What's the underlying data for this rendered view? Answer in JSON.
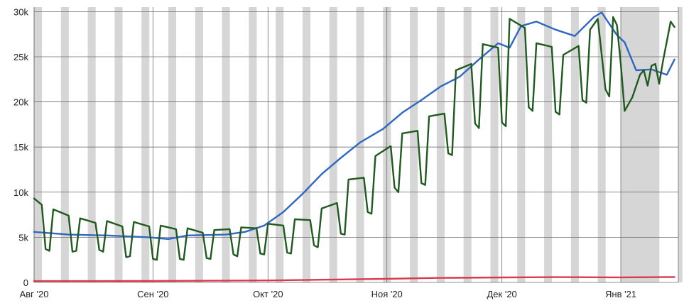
{
  "chart_data": {
    "type": "line",
    "title": "",
    "xlabel": "",
    "ylabel": "",
    "x_start": "2020-08-01",
    "x_end": "2021-01-16",
    "xlim": [
      "2020-08-01",
      "2021-01-16"
    ],
    "ylim": [
      0,
      30500
    ],
    "yticks": [
      0,
      5000,
      10000,
      15000,
      20000,
      25000,
      30000
    ],
    "ytick_labels": [
      "0",
      "5k",
      "10k",
      "15k",
      "20k",
      "25k",
      "30k"
    ],
    "xticks": [
      "2020-08-01",
      "2020-09-01",
      "2020-10-01",
      "2020-11-01",
      "2020-12-01",
      "2021-01-01"
    ],
    "xtick_labels": [
      "Авг '20",
      "Сен '20",
      "Окт '20",
      "Ноя '20",
      "Дек '20",
      "Янв '21"
    ],
    "grid": true,
    "legend": "none",
    "weekend_bands": true,
    "holiday_band": [
      "2021-01-01",
      "2021-01-11"
    ],
    "series": [
      {
        "color": "#2f67c4",
        "points": [
          [
            "2020-08-01",
            5600
          ],
          [
            "2020-08-10",
            5300
          ],
          [
            "2020-08-20",
            5200
          ],
          [
            "2020-08-31",
            5000
          ],
          [
            "2020-09-05",
            4800
          ],
          [
            "2020-09-10",
            5200
          ],
          [
            "2020-09-20",
            5300
          ],
          [
            "2020-09-25",
            5600
          ],
          [
            "2020-09-30",
            6300
          ],
          [
            "2020-10-05",
            7800
          ],
          [
            "2020-10-10",
            9800
          ],
          [
            "2020-10-15",
            12000
          ],
          [
            "2020-10-20",
            13800
          ],
          [
            "2020-10-25",
            15500
          ],
          [
            "2020-10-31",
            17000
          ],
          [
            "2020-11-05",
            18800
          ],
          [
            "2020-11-10",
            20200
          ],
          [
            "2020-11-15",
            21700
          ],
          [
            "2020-11-20",
            22800
          ],
          [
            "2020-11-25",
            24700
          ],
          [
            "2020-11-30",
            26500
          ],
          [
            "2020-12-03",
            26000
          ],
          [
            "2020-12-06",
            28400
          ],
          [
            "2020-12-10",
            28900
          ],
          [
            "2020-12-15",
            28000
          ],
          [
            "2020-12-20",
            27300
          ],
          [
            "2020-12-25",
            29400
          ],
          [
            "2020-12-27",
            29900
          ],
          [
            "2020-12-31",
            27400
          ],
          [
            "2021-01-02",
            26600
          ],
          [
            "2021-01-05",
            23500
          ],
          [
            "2021-01-09",
            23600
          ],
          [
            "2021-01-13",
            23000
          ],
          [
            "2021-01-15",
            24700
          ]
        ]
      },
      {
        "color": "#1f5a1f",
        "points": [
          [
            "2020-08-01",
            9300
          ],
          [
            "2020-08-03",
            8600
          ],
          [
            "2020-08-04",
            3700
          ],
          [
            "2020-08-05",
            3500
          ],
          [
            "2020-08-06",
            8100
          ],
          [
            "2020-08-10",
            7400
          ],
          [
            "2020-08-11",
            3400
          ],
          [
            "2020-08-12",
            3500
          ],
          [
            "2020-08-13",
            7100
          ],
          [
            "2020-08-17",
            6600
          ],
          [
            "2020-08-18",
            3600
          ],
          [
            "2020-08-19",
            3400
          ],
          [
            "2020-08-20",
            6800
          ],
          [
            "2020-08-24",
            6200
          ],
          [
            "2020-08-25",
            2800
          ],
          [
            "2020-08-26",
            2900
          ],
          [
            "2020-08-27",
            6700
          ],
          [
            "2020-08-31",
            6200
          ],
          [
            "2020-09-01",
            2600
          ],
          [
            "2020-09-02",
            2500
          ],
          [
            "2020-09-03",
            6300
          ],
          [
            "2020-09-07",
            5900
          ],
          [
            "2020-09-08",
            2600
          ],
          [
            "2020-09-09",
            2500
          ],
          [
            "2020-09-10",
            6000
          ],
          [
            "2020-09-14",
            5500
          ],
          [
            "2020-09-15",
            2700
          ],
          [
            "2020-09-16",
            2600
          ],
          [
            "2020-09-17",
            5800
          ],
          [
            "2020-09-21",
            5900
          ],
          [
            "2020-09-22",
            3100
          ],
          [
            "2020-09-23",
            2900
          ],
          [
            "2020-09-24",
            6100
          ],
          [
            "2020-09-28",
            6000
          ],
          [
            "2020-09-29",
            3200
          ],
          [
            "2020-09-30",
            3100
          ],
          [
            "2020-10-01",
            6500
          ],
          [
            "2020-10-05",
            6300
          ],
          [
            "2020-10-06",
            3300
          ],
          [
            "2020-10-07",
            3200
          ],
          [
            "2020-10-08",
            7000
          ],
          [
            "2020-10-12",
            6900
          ],
          [
            "2020-10-13",
            4100
          ],
          [
            "2020-10-14",
            3900
          ],
          [
            "2020-10-15",
            8200
          ],
          [
            "2020-10-19",
            8800
          ],
          [
            "2020-10-20",
            5400
          ],
          [
            "2020-10-21",
            5300
          ],
          [
            "2020-10-22",
            11400
          ],
          [
            "2020-10-26",
            11600
          ],
          [
            "2020-10-27",
            7800
          ],
          [
            "2020-10-28",
            7600
          ],
          [
            "2020-10-29",
            14000
          ],
          [
            "2020-11-02",
            15100
          ],
          [
            "2020-11-03",
            10500
          ],
          [
            "2020-11-04",
            10000
          ],
          [
            "2020-11-05",
            16500
          ],
          [
            "2020-11-09",
            16800
          ],
          [
            "2020-11-10",
            11000
          ],
          [
            "2020-11-11",
            10800
          ],
          [
            "2020-11-12",
            18400
          ],
          [
            "2020-11-16",
            18700
          ],
          [
            "2020-11-17",
            14300
          ],
          [
            "2020-11-18",
            14100
          ],
          [
            "2020-11-19",
            23500
          ],
          [
            "2020-11-23",
            24200
          ],
          [
            "2020-11-24",
            17600
          ],
          [
            "2020-11-25",
            17100
          ],
          [
            "2020-11-26",
            26400
          ],
          [
            "2020-11-30",
            26000
          ],
          [
            "2020-12-01",
            17700
          ],
          [
            "2020-12-02",
            17300
          ],
          [
            "2020-12-03",
            29200
          ],
          [
            "2020-12-07",
            28200
          ],
          [
            "2020-12-08",
            19400
          ],
          [
            "2020-12-09",
            19000
          ],
          [
            "2020-12-10",
            26500
          ],
          [
            "2020-12-14",
            26100
          ],
          [
            "2020-12-15",
            18900
          ],
          [
            "2020-12-16",
            18600
          ],
          [
            "2020-12-17",
            25200
          ],
          [
            "2020-12-21",
            26200
          ],
          [
            "2020-12-22",
            20200
          ],
          [
            "2020-12-23",
            19900
          ],
          [
            "2020-12-24",
            28000
          ],
          [
            "2020-12-26",
            29200
          ],
          [
            "2020-12-28",
            21400
          ],
          [
            "2020-12-29",
            20600
          ],
          [
            "2020-12-30",
            29400
          ],
          [
            "2020-12-31",
            28500
          ],
          [
            "2021-01-01",
            24200
          ],
          [
            "2021-01-02",
            19000
          ],
          [
            "2021-01-04",
            20500
          ],
          [
            "2021-01-06",
            23000
          ],
          [
            "2021-01-07",
            23500
          ],
          [
            "2021-01-08",
            21800
          ],
          [
            "2021-01-09",
            24000
          ],
          [
            "2021-01-10",
            24200
          ],
          [
            "2021-01-11",
            22000
          ],
          [
            "2021-01-12",
            24500
          ],
          [
            "2021-01-14",
            28900
          ],
          [
            "2021-01-15",
            28300
          ]
        ]
      },
      {
        "color": "#d9394a",
        "points": [
          [
            "2020-08-01",
            150
          ],
          [
            "2020-09-01",
            160
          ],
          [
            "2020-10-01",
            220
          ],
          [
            "2020-10-15",
            300
          ],
          [
            "2020-11-01",
            400
          ],
          [
            "2020-11-15",
            500
          ],
          [
            "2020-12-01",
            550
          ],
          [
            "2020-12-15",
            580
          ],
          [
            "2021-01-01",
            560
          ],
          [
            "2021-01-15",
            600
          ]
        ]
      }
    ]
  }
}
